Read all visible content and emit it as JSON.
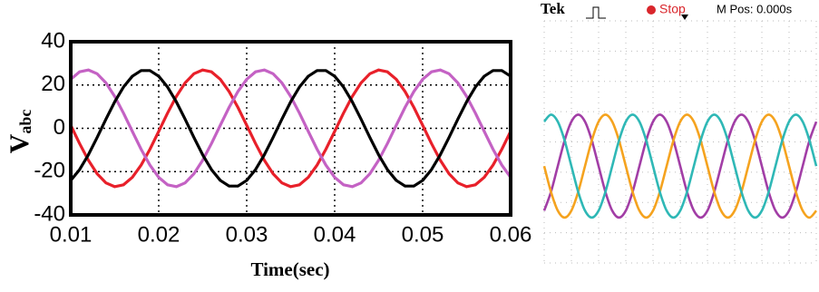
{
  "chart_data": [
    {
      "type": "line",
      "xlabel": "Time(sec)",
      "ylabel": "V",
      "ylabel_subscript": "abc",
      "x": [
        0.01,
        0.011,
        0.012,
        0.013,
        0.014,
        0.015,
        0.016,
        0.017,
        0.018,
        0.019,
        0.02,
        0.021,
        0.022,
        0.023,
        0.024,
        0.025,
        0.026,
        0.027,
        0.028,
        0.029,
        0.03,
        0.031,
        0.032,
        0.033,
        0.034,
        0.035,
        0.036,
        0.037,
        0.038,
        0.039,
        0.04,
        0.041,
        0.042,
        0.043,
        0.044,
        0.045,
        0.046,
        0.047,
        0.048,
        0.049,
        0.05,
        0.051,
        0.052,
        0.053,
        0.054,
        0.055,
        0.056,
        0.057,
        0.058,
        0.059,
        0.06
      ],
      "series": [
        {
          "color": "#e8202a",
          "values": [
            1.41,
            -6.99,
            -14.71,
            -20.98,
            -25.21,
            -26.96,
            -26.08,
            -22.64,
            -16.99,
            -9.68,
            -1.41,
            6.99,
            14.71,
            20.98,
            25.21,
            26.96,
            26.08,
            22.64,
            16.99,
            9.68,
            1.41,
            -6.99,
            -14.71,
            -20.98,
            -25.21,
            -26.96,
            -26.08,
            -22.64,
            -16.99,
            -9.68,
            -1.41,
            6.99,
            14.71,
            20.98,
            25.21,
            26.96,
            26.08,
            22.64,
            16.99,
            9.68,
            1.41,
            -6.99,
            -14.71,
            -20.98,
            -25.21,
            -26.96,
            -26.08,
            -22.64,
            -16.99,
            -9.68,
            -1.41
          ]
        },
        {
          "color": "#c462c4",
          "values": [
            22.64,
            26.08,
            26.96,
            25.21,
            20.98,
            14.71,
            6.99,
            -1.41,
            -9.68,
            -16.99,
            -22.64,
            -26.08,
            -26.96,
            -25.21,
            -20.98,
            -14.71,
            -6.99,
            1.41,
            9.68,
            16.99,
            22.64,
            26.08,
            26.96,
            25.21,
            20.98,
            14.71,
            6.99,
            -1.41,
            -9.68,
            -16.99,
            -22.64,
            -26.08,
            -26.96,
            -25.21,
            -20.98,
            -14.71,
            -6.99,
            1.41,
            9.68,
            16.99,
            22.64,
            26.08,
            26.96,
            25.21,
            20.98,
            14.71,
            6.99,
            -1.41,
            -9.68,
            -16.99,
            -22.64
          ]
        },
        {
          "color": "#000000",
          "values": [
            -24.06,
            -19.09,
            -12.26,
            -4.22,
            4.22,
            12.26,
            19.09,
            24.06,
            26.67,
            26.67,
            24.06,
            19.09,
            12.26,
            4.22,
            -4.22,
            -12.26,
            -19.09,
            -24.06,
            -26.67,
            -26.67,
            -24.06,
            -19.09,
            -12.26,
            -4.22,
            4.22,
            12.26,
            19.09,
            24.06,
            26.67,
            26.67,
            24.06,
            19.09,
            12.26,
            4.22,
            -4.22,
            -12.26,
            -19.09,
            -24.06,
            -26.67,
            -26.67,
            -24.06,
            -19.09,
            -12.26,
            -4.22,
            4.22,
            12.26,
            19.09,
            24.06,
            26.67,
            26.67,
            24.06
          ]
        }
      ],
      "xlim": [
        0.01,
        0.06
      ],
      "xticks": [
        0.01,
        0.02,
        0.03,
        0.04,
        0.05,
        0.06
      ],
      "ylim": [
        -40,
        40
      ],
      "yticks": [
        40,
        20,
        0,
        -20,
        -40
      ],
      "grid": true
    },
    {
      "type": "line",
      "brand": "Tek",
      "status": "Stop",
      "position": "M Pos: 0.000s",
      "x": [
        0,
        0.25,
        0.5,
        0.75,
        1,
        1.25,
        1.5,
        1.75,
        2,
        2.25,
        2.5,
        2.75,
        3,
        3.25,
        3.5,
        3.75,
        4,
        4.25,
        4.5,
        4.75,
        5,
        5.25,
        5.5,
        5.75,
        6,
        6.25,
        6.5,
        6.75,
        7,
        7.25,
        7.5,
        7.75,
        8,
        8.25,
        8.5,
        8.75,
        9,
        9.25,
        9.5,
        9.75,
        10
      ],
      "series": [
        {
          "color": "#a23ea6",
          "values": [
            -2.27,
            -1.65,
            -0.8,
            0.05,
            0.67,
            0.9,
            0.67,
            0.05,
            -0.8,
            -1.65,
            -2.27,
            -2.5,
            -2.27,
            -1.65,
            -0.8,
            0.05,
            0.67,
            0.9,
            0.67,
            0.05,
            -0.8,
            -1.65,
            -2.27,
            -2.5,
            -2.27,
            -1.65,
            -0.8,
            0.05,
            0.67,
            0.9,
            0.67,
            0.05,
            -0.8,
            -1.65,
            -2.27,
            -2.5,
            -2.27,
            -1.65,
            -0.8,
            0.05,
            0.67
          ]
        },
        {
          "color": "#f5a31f",
          "values": [
            -0.8,
            -1.65,
            -2.27,
            -2.5,
            -2.27,
            -1.65,
            -0.8,
            0.05,
            0.67,
            0.9,
            0.67,
            0.05,
            -0.8,
            -1.65,
            -2.27,
            -2.5,
            -2.27,
            -1.65,
            -0.8,
            0.05,
            0.67,
            0.9,
            0.67,
            0.05,
            -0.8,
            -1.65,
            -2.27,
            -2.5,
            -2.27,
            -1.65,
            -0.8,
            0.05,
            0.67,
            0.9,
            0.67,
            0.05,
            -0.8,
            -1.65,
            -2.27,
            -2.5,
            -2.27
          ]
        },
        {
          "color": "#2fb8b6",
          "values": [
            0.67,
            0.9,
            0.67,
            0.05,
            -0.8,
            -1.65,
            -2.27,
            -2.5,
            -2.27,
            -1.65,
            -0.8,
            0.05,
            0.67,
            0.9,
            0.67,
            0.05,
            -0.8,
            -1.65,
            -2.27,
            -2.5,
            -2.27,
            -1.65,
            -0.8,
            0.05,
            0.67,
            0.9,
            0.67,
            0.05,
            -0.8,
            -1.65,
            -2.27,
            -2.5,
            -2.27,
            -1.65,
            -0.8,
            0.05,
            0.67,
            0.9,
            0.67,
            0.05,
            -0.8
          ]
        }
      ],
      "xlim": [
        0,
        10
      ],
      "ylim": [
        -4,
        4
      ],
      "grid": true
    }
  ]
}
